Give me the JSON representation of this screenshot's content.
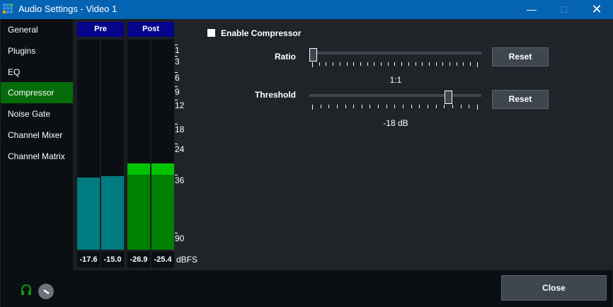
{
  "window": {
    "title": "Audio Settings - Video 1",
    "minimize_icon": "minimize-icon",
    "maximize_icon": "maximize-icon",
    "close_icon": "close-icon"
  },
  "sidebar": {
    "items": [
      {
        "label": "General"
      },
      {
        "label": "Plugins"
      },
      {
        "label": "EQ"
      },
      {
        "label": "Compressor",
        "active": true
      },
      {
        "label": "Noise Gate"
      },
      {
        "label": "Channel Mixer"
      },
      {
        "label": "Channel Matrix"
      }
    ]
  },
  "meters": {
    "pre_label": "Pre",
    "post_label": "Post",
    "unit": "dBFS",
    "scale": [
      "1",
      "3",
      "6",
      "9",
      "12",
      "18",
      "24",
      "36",
      "90"
    ],
    "values": [
      "-17.6",
      "-15.0",
      "-26.9",
      "-25.4"
    ],
    "colors": {
      "pre": "#007b7f",
      "post": "#008000",
      "post_peak": "#00c400",
      "header": "#05058c"
    }
  },
  "compressor": {
    "enable_label": "Enable Compressor",
    "enabled": false,
    "ratio": {
      "label": "Ratio",
      "value": "1:1",
      "reset": "Reset",
      "position": 0
    },
    "threshold": {
      "label": "Threshold",
      "value": "-18 dB",
      "reset": "Reset",
      "position": 0.8
    }
  },
  "footer": {
    "close": "Close",
    "headphones_icon": "headphones-icon",
    "volume_knob": "volume-knob"
  }
}
